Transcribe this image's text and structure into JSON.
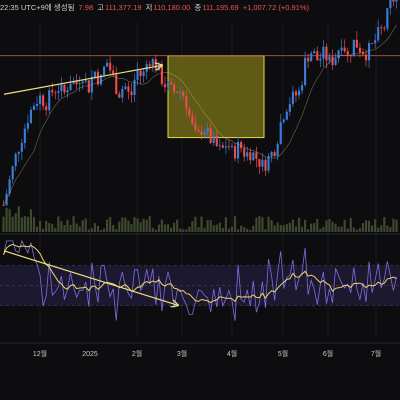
{
  "header": {
    "time_fragment": "22:35 UTC+9에 생성됨",
    "open_fragment": "7.98",
    "high_label": "고",
    "high_value": "111,377.19",
    "low_label": "저",
    "low_value": "110,180.00",
    "close_label": "종",
    "close_value": "111,195.69",
    "change_value": "+1,007.72 (+0.91%)"
  },
  "colors": {
    "background": "#0d0d0f",
    "candle_up": "#3b7dd8",
    "candle_down": "#ef4b4b",
    "trend_line": "#f0e07a",
    "highlight_fill": "#7b7419",
    "highlight_stroke": "#e6d64a",
    "oscillator_line": "#7c6fe0",
    "oscillator_signal": "#f0d56a",
    "oscillator_band": "#1c1830",
    "volume": "#3f4a2e",
    "resistance_line": "#b8554a"
  },
  "chart_data": {
    "type": "candlestick",
    "x_axis": {
      "tick_labels": [
        "12월",
        "2025",
        "2월",
        "3월",
        "4월",
        "5월",
        "6월",
        "7월"
      ]
    },
    "price_range": [
      74000,
      112000
    ],
    "resistance_level": 105000,
    "highlight_box": {
      "start": "3월",
      "end": "5월",
      "price_range": [
        88000,
        105000
      ]
    },
    "annotations": [
      {
        "type": "arrow",
        "pane": "price",
        "from_price": 97000,
        "to_price": 103000,
        "description": "upward trend line"
      },
      {
        "type": "arrow",
        "pane": "oscillator",
        "from_value": 85,
        "to_value": 30,
        "description": "downward divergence line"
      }
    ],
    "price_path": [
      74000,
      79000,
      84000,
      88000,
      92000,
      95000,
      96500,
      95000,
      97500,
      98500,
      97000,
      100000,
      99000,
      101500,
      98000,
      102000,
      99500,
      104000,
      101000,
      97000,
      99000,
      96000,
      102000,
      100500,
      104500,
      103500,
      100500,
      98500,
      97500,
      98000,
      96500,
      91000,
      87500,
      90500,
      88000,
      86500,
      85000,
      87000,
      84500,
      86500,
      84500,
      85000,
      83500,
      82000,
      84000,
      86000,
      92000,
      95000,
      96500,
      97500,
      104500,
      106000,
      104000,
      105500,
      103500,
      105000,
      108500,
      104500,
      108000,
      106500,
      105500,
      107000,
      109500,
      111000,
      116000,
      117500
    ],
    "oscillator_range": [
      0,
      100
    ],
    "oscillator_levels": [
      70,
      30
    ]
  }
}
